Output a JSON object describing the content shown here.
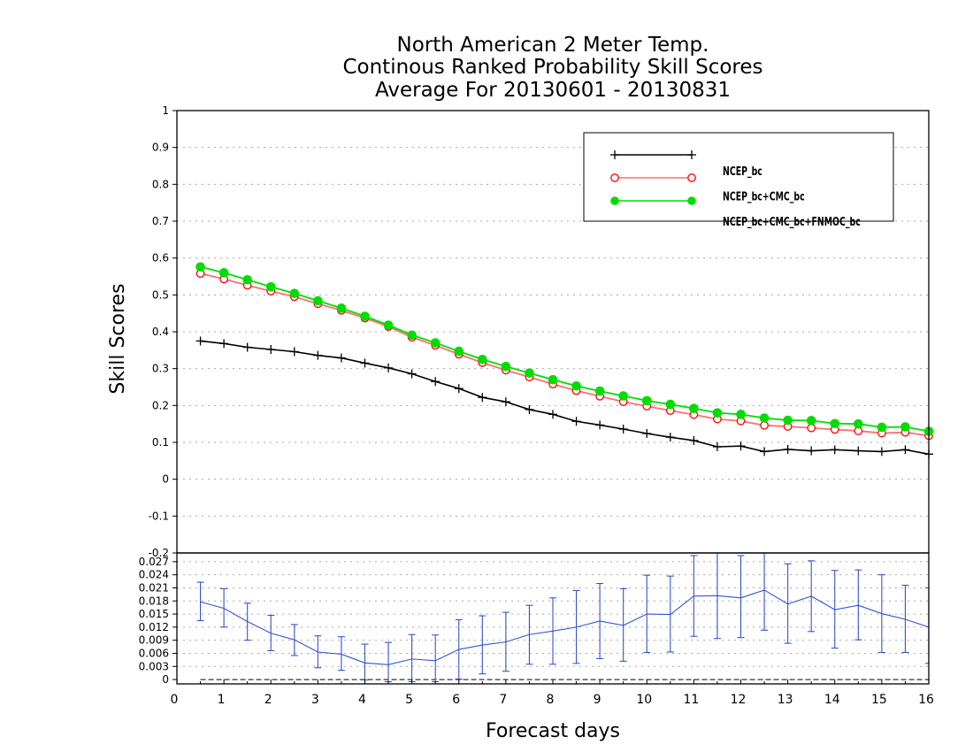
{
  "title_lines": [
    "North American 2 Meter Temp.",
    "Continous Ranked Probability Skill Scores",
    "Average For 20130601 - 20130831"
  ],
  "chart_data": [
    {
      "type": "line",
      "ylabel": "Skill Scores",
      "xlabel": "",
      "xlim": [
        0,
        16
      ],
      "ylim": [
        -0.2,
        1
      ],
      "yticks": [
        -0.2,
        -0.1,
        0,
        0.1,
        0.2,
        0.3,
        0.4,
        0.5,
        0.6,
        0.7,
        0.8,
        0.9,
        1
      ],
      "ytick_labels": [
        "-0.2",
        "-0.1",
        "0",
        "0.1",
        "0.2",
        "0.3",
        "0.4",
        "0.5",
        "0.6",
        "0.7",
        "0.8",
        "0.9",
        "1"
      ],
      "grid": true,
      "legend_position": "top-right",
      "x": [
        0.5,
        1.0,
        1.5,
        2.0,
        2.5,
        3.0,
        3.5,
        4.0,
        4.5,
        5.0,
        5.5,
        6.0,
        6.5,
        7.0,
        7.5,
        8.0,
        8.5,
        9.0,
        9.5,
        10.0,
        10.5,
        11.0,
        11.5,
        12.0,
        12.5,
        13.0,
        13.5,
        14.0,
        14.5,
        15.0,
        15.5,
        16.0
      ],
      "series": [
        {
          "name": "NCEP_bc",
          "color": "#000000",
          "marker": "plus",
          "values": [
            0.375,
            0.368,
            0.358,
            0.352,
            0.346,
            0.336,
            0.329,
            0.315,
            0.302,
            0.286,
            0.265,
            0.246,
            0.222,
            0.21,
            0.189,
            0.176,
            0.157,
            0.147,
            0.136,
            0.124,
            0.114,
            0.105,
            0.088,
            0.09,
            0.075,
            0.081,
            0.077,
            0.08,
            0.077,
            0.075,
            0.08,
            0.068
          ]
        },
        {
          "name": "NCEP_bc+CMC_bc",
          "color": "#ff0000",
          "line_color": "#ff7070",
          "marker": "open-circle",
          "values": [
            0.558,
            0.543,
            0.526,
            0.51,
            0.495,
            0.476,
            0.458,
            0.437,
            0.414,
            0.385,
            0.363,
            0.339,
            0.316,
            0.296,
            0.277,
            0.258,
            0.24,
            0.225,
            0.21,
            0.198,
            0.186,
            0.175,
            0.163,
            0.158,
            0.146,
            0.143,
            0.139,
            0.135,
            0.131,
            0.125,
            0.127,
            0.118
          ]
        },
        {
          "name": "NCEP_bc+CMC_bc+FNMOC_bc",
          "color": "#00dd00",
          "marker": "filled-circle",
          "values": [
            0.576,
            0.56,
            0.541,
            0.522,
            0.504,
            0.484,
            0.464,
            0.442,
            0.418,
            0.391,
            0.37,
            0.347,
            0.325,
            0.306,
            0.288,
            0.27,
            0.253,
            0.239,
            0.226,
            0.213,
            0.203,
            0.192,
            0.18,
            0.176,
            0.166,
            0.16,
            0.159,
            0.151,
            0.15,
            0.141,
            0.142,
            0.13
          ]
        }
      ]
    },
    {
      "type": "line",
      "xlabel": "Forecast days",
      "ylabel": "",
      "xlim": [
        0,
        16
      ],
      "ylim": [
        -0.001,
        0.029
      ],
      "yticks": [
        0,
        0.003,
        0.006,
        0.009,
        0.012,
        0.015,
        0.018,
        0.021,
        0.024,
        0.027
      ],
      "ytick_labels": [
        "0",
        "0.003",
        "0.006",
        "0.009",
        "0.012",
        "0.015",
        "0.018",
        "0.021",
        "0.024",
        "0.027"
      ],
      "xticks": [
        0,
        1,
        2,
        3,
        4,
        5,
        6,
        7,
        8,
        9,
        10,
        11,
        12,
        13,
        14,
        15,
        16
      ],
      "xtick_labels": [
        "0",
        "1",
        "2",
        "3",
        "4",
        "5",
        "6",
        "7",
        "8",
        "9",
        "10",
        "11",
        "12",
        "13",
        "14",
        "15",
        "16"
      ],
      "grid": true,
      "zero_line": true,
      "x": [
        0.5,
        1.0,
        1.5,
        2.0,
        2.5,
        3.0,
        3.5,
        4.0,
        4.5,
        5.0,
        5.5,
        6.0,
        6.5,
        7.0,
        7.5,
        8.0,
        8.5,
        9.0,
        9.5,
        10.0,
        10.5,
        11.0,
        11.5,
        12.0,
        12.5,
        13.0,
        13.5,
        14.0,
        14.5,
        15.0,
        15.5,
        16.0
      ],
      "series": [
        {
          "name": "",
          "color": "#3355cc",
          "values": [
            0.0178,
            0.0163,
            0.0133,
            0.0106,
            0.0091,
            0.0063,
            0.0058,
            0.0038,
            0.0034,
            0.0047,
            0.0043,
            0.0069,
            0.0079,
            0.0086,
            0.0103,
            0.0111,
            0.012,
            0.0134,
            0.0124,
            0.015,
            0.0149,
            0.0191,
            0.0192,
            0.0187,
            0.0205,
            0.0173,
            0.0191,
            0.016,
            0.017,
            0.0151,
            0.0138,
            0.012
          ],
          "lower": [
            0.0135,
            0.012,
            0.009,
            0.0066,
            0.0055,
            0.0027,
            0.0021,
            -0.0001,
            -0.0005,
            -0.0005,
            -0.0005,
            0.0001,
            0.0013,
            0.0019,
            0.0035,
            0.0035,
            0.0037,
            0.0048,
            0.0042,
            0.0062,
            0.0063,
            0.0099,
            0.0094,
            0.0096,
            0.0113,
            0.0083,
            0.011,
            0.0072,
            0.0091,
            0.0062,
            0.0062,
            0.0037
          ],
          "upper": [
            0.0223,
            0.0208,
            0.0175,
            0.0147,
            0.0126,
            0.01,
            0.0098,
            0.0081,
            0.0085,
            0.0103,
            0.0102,
            0.0137,
            0.0146,
            0.0154,
            0.017,
            0.0187,
            0.0204,
            0.022,
            0.0208,
            0.0239,
            0.0237,
            0.0284,
            0.0291,
            0.0284,
            0.029,
            0.0265,
            0.0272,
            0.025,
            0.0251,
            0.024,
            0.0216,
            0.021
          ]
        }
      ]
    }
  ]
}
